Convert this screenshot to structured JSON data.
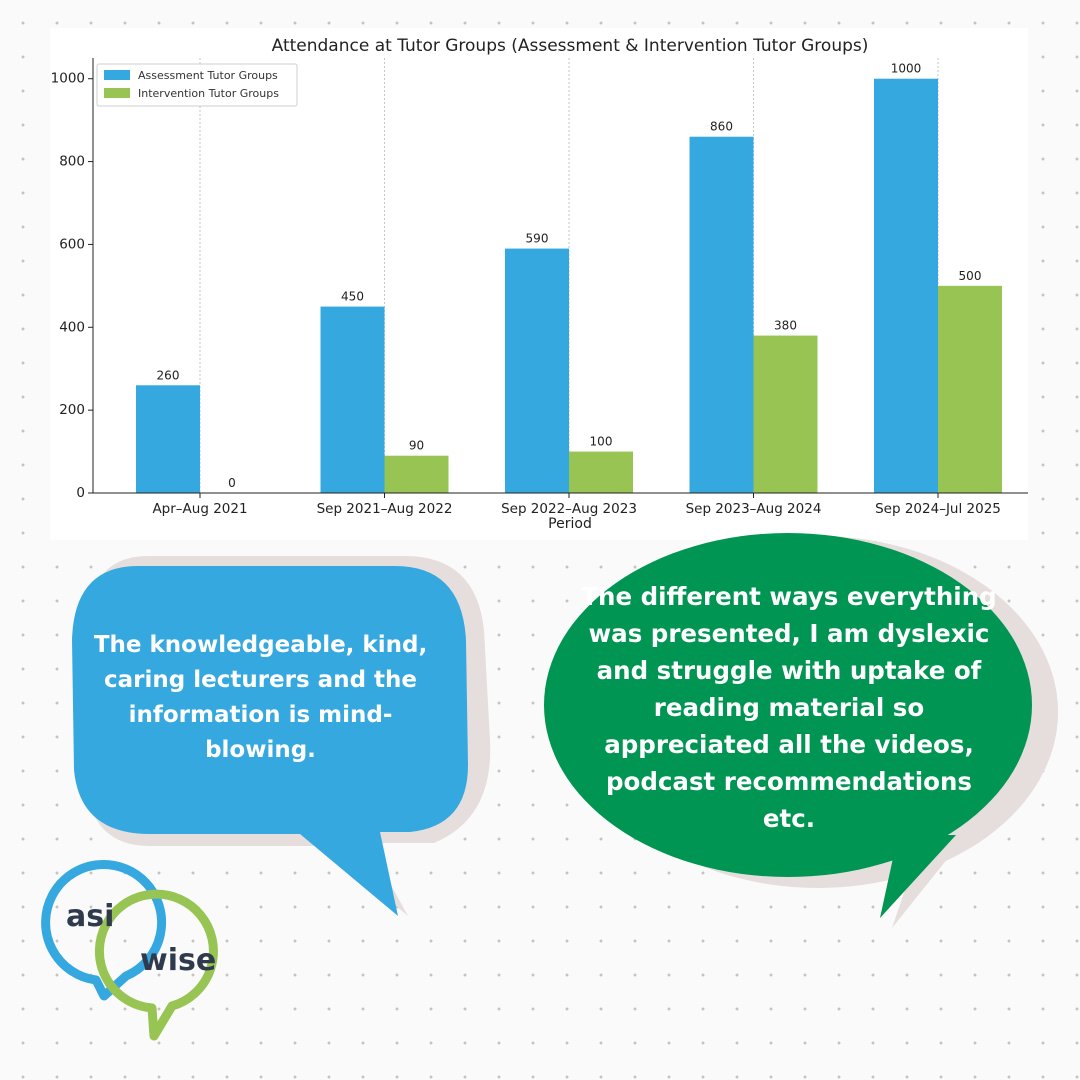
{
  "chart_data": {
    "type": "bar",
    "title": "Attendance at Tutor Groups (Assessment & Intervention Tutor Groups)",
    "xlabel": "Period",
    "ylabel": "",
    "categories": [
      "Apr–Aug 2021",
      "Sep 2021–Aug 2022",
      "Sep 2022–Aug 2023",
      "Sep 2023–Aug 2024",
      "Sep 2024–Jul 2025"
    ],
    "series": [
      {
        "name": "Assessment Tutor Groups",
        "color": "#36a8e0",
        "values": [
          260,
          450,
          590,
          860,
          1000
        ]
      },
      {
        "name": "Intervention Tutor Groups",
        "color": "#97c453",
        "values": [
          0,
          90,
          100,
          380,
          500
        ]
      }
    ],
    "yticks": [
      0,
      200,
      400,
      600,
      800,
      1000
    ],
    "ylim": [
      0,
      1050
    ],
    "legend": "top-left",
    "grid": "vertical dashed"
  },
  "quotes": {
    "left": "The knowledgeable, kind, caring lecturers and the information is mind-blowing.",
    "right": "The different ways everything was presented, I am dyslexic and struggle with uptake of reading material so appreciated all the videos, podcast recommendations etc."
  },
  "colors": {
    "left_bubble": "#36a8e0",
    "right_bubble": "#009552",
    "bubble_shadow": "#e5dedc",
    "logo_blue": "#36a8e0",
    "logo_green": "#97c453",
    "logo_text": "#2f3b4c"
  },
  "logo": {
    "word1": "asi",
    "word2": "wise"
  }
}
